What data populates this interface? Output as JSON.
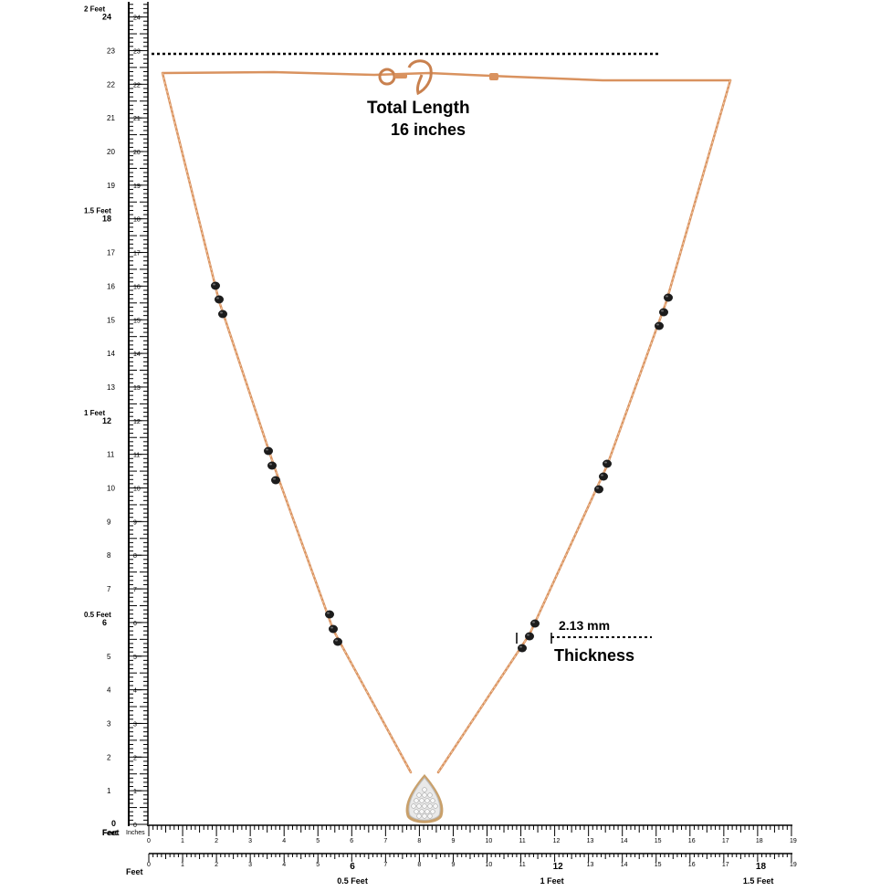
{
  "annotations": {
    "total_length_title": "Total  Length",
    "total_length_value": "16 inches",
    "thickness_value": "2.13 mm",
    "thickness_label": "Thickness"
  },
  "vertical_ruler": {
    "inch_labels": [
      "0",
      "1",
      "2",
      "3",
      "4",
      "5",
      "6",
      "7",
      "8",
      "9",
      "10",
      "11",
      "12",
      "13",
      "14",
      "15",
      "16",
      "17",
      "18",
      "19",
      "20",
      "21",
      "22",
      "23",
      "24"
    ],
    "feet_markers": [
      {
        "inch": 0,
        "line1": "0",
        "line2": "Feet"
      },
      {
        "inch": 6,
        "line1": "0.5 Feet",
        "line2": "6"
      },
      {
        "inch": 12,
        "line1": "1 Feet",
        "line2": "12"
      },
      {
        "inch": 18,
        "line1": "1.5 Feet",
        "line2": "18"
      },
      {
        "inch": 24,
        "line1": "2 Feet",
        "line2": "24"
      }
    ]
  },
  "horizontal_ruler_top": {
    "unit_label": "Inches",
    "corner_label": "Feet",
    "inch_labels": [
      "0",
      "1",
      "2",
      "3",
      "4",
      "5",
      "6",
      "7",
      "8",
      "9",
      "10",
      "11",
      "12",
      "13",
      "14",
      "15",
      "16",
      "17",
      "18",
      "19"
    ]
  },
  "horizontal_ruler_bottom": {
    "unit_label": "Feet",
    "inch_labels": [
      "0",
      "1",
      "2",
      "3",
      "4",
      "5",
      "6",
      "7",
      "8",
      "9",
      "10",
      "11",
      "12",
      "13",
      "14",
      "15",
      "16",
      "17",
      "18",
      "19"
    ],
    "feet_labels": [
      {
        "inch": 6,
        "text": "0.5 Feet"
      },
      {
        "inch": 12,
        "text": "1 Feet"
      },
      {
        "inch": 18,
        "text": "1.5 Feet"
      }
    ]
  },
  "colors": {
    "chain": "#d9925f",
    "chain_dark": "#b87444",
    "bead": "#1c1c1c",
    "pendant": "#e6e6e6",
    "ruler": "#000000"
  }
}
